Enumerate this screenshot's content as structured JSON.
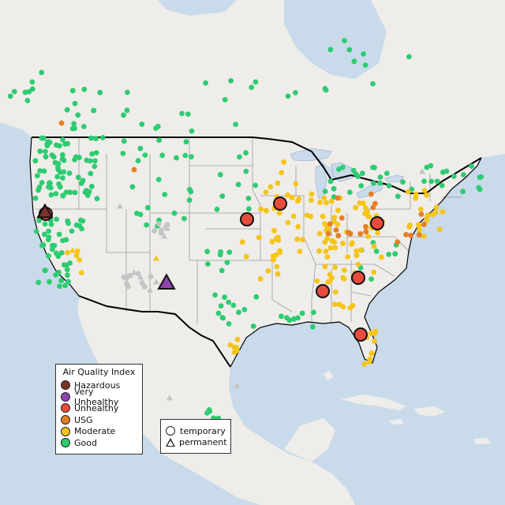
{
  "colors": {
    "water": "#c9daea",
    "land": "#efedea",
    "border": "#000000",
    "state_line": "#9a9a9a",
    "good": "#2ecc71",
    "moderate": "#f5c518",
    "usg": "#e67e22",
    "unhealthy": "#e74c3c",
    "very_unhealthy": "#8e44ad",
    "hazardous": "#7b3328",
    "no_data": "#c4c4c4"
  },
  "aqi_legend": {
    "title": "Air Quality Index",
    "items": [
      {
        "label": "Hazardous",
        "color": "#7b3328"
      },
      {
        "label": "Very Unhealthy",
        "color": "#8e44ad"
      },
      {
        "label": "Unhealthy",
        "color": "#e74c3c"
      },
      {
        "label": "USG",
        "color": "#e67e22"
      },
      {
        "label": "Moderate",
        "color": "#f5c518"
      },
      {
        "label": "Good",
        "color": "#2ecc71"
      }
    ]
  },
  "type_legend": {
    "temporary": "temporary",
    "permanent": "permanent"
  }
}
